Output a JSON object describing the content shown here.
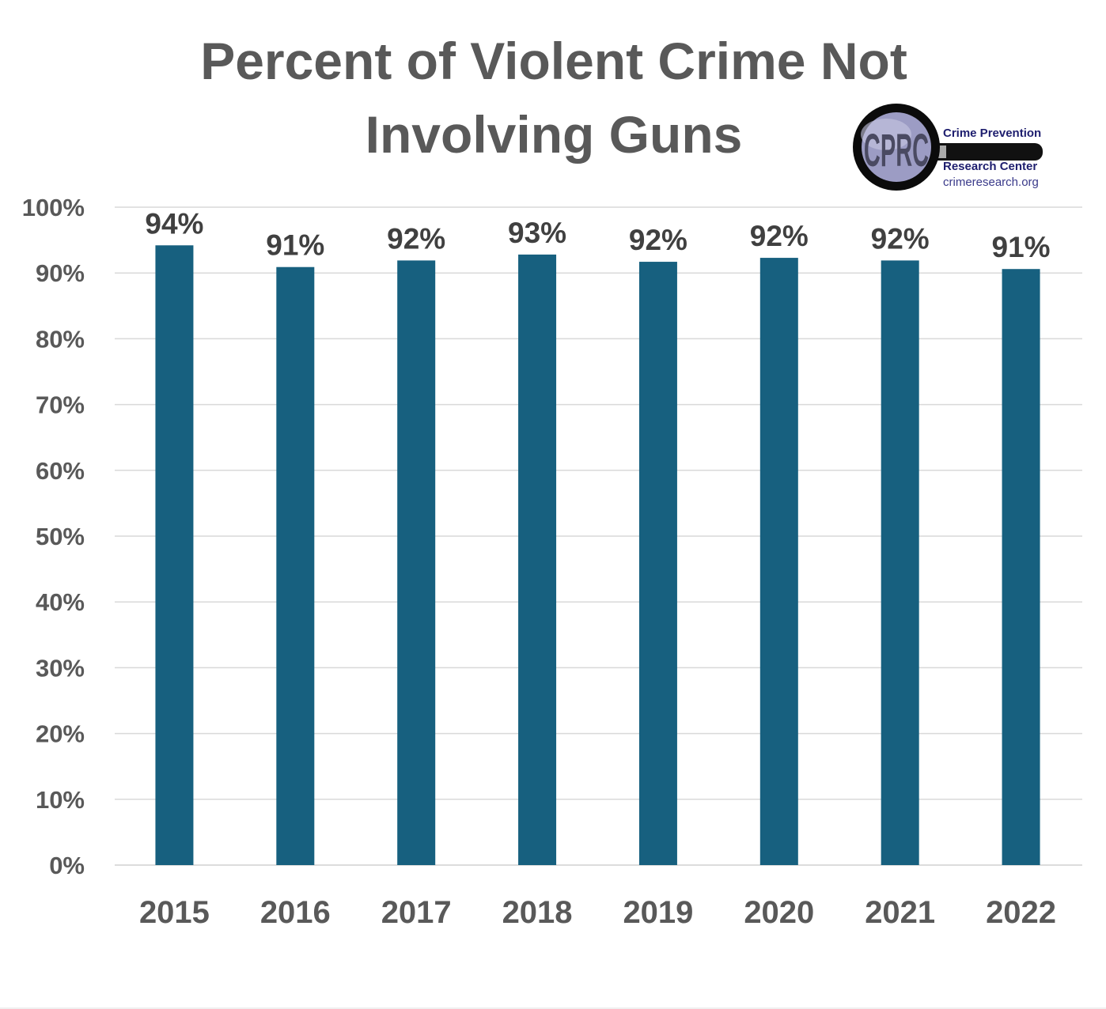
{
  "chart_data": {
    "type": "bar",
    "title": "Percent of Violent Crime Not Involving Guns",
    "title_lines": [
      "Percent of Violent Crime Not",
      "Involving Guns"
    ],
    "categories": [
      "2015",
      "2016",
      "2017",
      "2018",
      "2019",
      "2020",
      "2021",
      "2022"
    ],
    "values": [
      94.2,
      90.9,
      91.9,
      92.8,
      91.7,
      92.3,
      91.9,
      90.6
    ],
    "data_labels": [
      "94%",
      "91%",
      "92%",
      "93%",
      "92%",
      "92%",
      "92%",
      "91%"
    ],
    "xlabel": "",
    "ylabel": "",
    "ylim": [
      0,
      100
    ],
    "yticks": [
      "0%",
      "10%",
      "20%",
      "30%",
      "40%",
      "50%",
      "60%",
      "70%",
      "80%",
      "90%",
      "100%"
    ],
    "grid": true,
    "legend": "none",
    "bar_color": "#17607f"
  },
  "logo": {
    "initials": "CPRC",
    "line1": "Crime Prevention",
    "line2": "Research Center",
    "url": "crimeresearch.org"
  }
}
